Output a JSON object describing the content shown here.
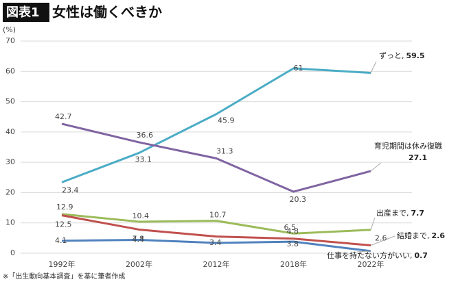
{
  "chart_data": {
    "type": "line",
    "title_badge": "図表1",
    "title": "女性は働くべきか",
    "y_label": "(%)",
    "note": "※「出生動向基本調査」を基に筆者作成",
    "categories": [
      "1992年",
      "2002年",
      "2012年",
      "2018年",
      "2022年"
    ],
    "ylim": [
      0,
      70
    ],
    "yticks": [
      0,
      10,
      20,
      30,
      40,
      50,
      60,
      70
    ],
    "series": [
      {
        "name": "ずっと,",
        "color": "#4bacc6",
        "values": [
          23.4,
          33.1,
          45.9,
          61,
          59.5
        ],
        "value_labels": [
          "23.4",
          "33.1",
          "45.9",
          "61",
          "59.5"
        ]
      },
      {
        "name": "育児期間は休み復職",
        "color": "#8064a2",
        "values": [
          42.7,
          36.6,
          31.3,
          20.3,
          27.1
        ],
        "value_labels": [
          "42.7",
          "36.6",
          "31.3",
          "20.3",
          "27.1"
        ]
      },
      {
        "name": "出産まで,",
        "color": "#9bbb59",
        "values": [
          12.9,
          10.4,
          10.7,
          6.5,
          7.7
        ],
        "value_labels": [
          "12.9",
          "10.4",
          "10.7",
          "6.5",
          "7.7"
        ]
      },
      {
        "name": "結婚まで,",
        "color": "#c0504d",
        "values": [
          12.5,
          7.8,
          5.5,
          4.8,
          2.6
        ],
        "value_labels": [
          "12.5",
          "7.8",
          null,
          "4.8",
          "2.6"
        ]
      },
      {
        "name": "仕事を持たない方がいい,",
        "color": "#4f81bd",
        "values": [
          4.1,
          4.4,
          3.4,
          3.8,
          0.7
        ],
        "value_labels": [
          "4.1",
          "4.4",
          "3.4",
          "3.8",
          "0.7"
        ]
      }
    ]
  }
}
